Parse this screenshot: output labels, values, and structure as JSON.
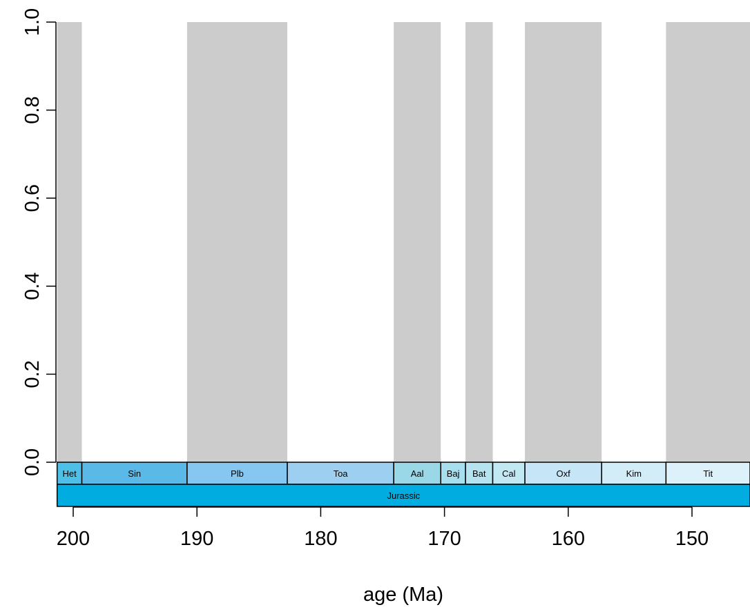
{
  "chart_data": {
    "type": "area",
    "title": "",
    "xlabel": "age (Ma)",
    "ylabel": "",
    "xlim": [
      201.3,
      145.0
    ],
    "x_reversed": true,
    "ylim": [
      0,
      1
    ],
    "x_ticks": [
      200,
      190,
      180,
      170,
      160,
      150
    ],
    "y_ticks": [
      0.0,
      0.2,
      0.4,
      0.6,
      0.8,
      1.0
    ],
    "y_tick_labels": [
      "0.0",
      "0.2",
      "0.4",
      "0.6",
      "0.8",
      "1.0"
    ],
    "grid": false,
    "legend": "none",
    "shading_color": "#cccccc",
    "shaded_intervals": [
      {
        "stage": "Het",
        "start": 201.3,
        "end": 199.3
      },
      {
        "stage": "Plb",
        "start": 190.8,
        "end": 182.7
      },
      {
        "stage": "Aal",
        "start": 174.1,
        "end": 170.3
      },
      {
        "stage": "Bat",
        "start": 168.3,
        "end": 166.1
      },
      {
        "stage": "Oxf",
        "start": 163.5,
        "end": 157.3
      },
      {
        "stage": "Tit",
        "start": 152.1,
        "end": 145.0
      }
    ],
    "stages": [
      {
        "label": "Het",
        "start": 201.3,
        "end": 199.3,
        "color": "#4ec0e8"
      },
      {
        "label": "Sin",
        "start": 199.3,
        "end": 190.8,
        "color": "#5bb9e8"
      },
      {
        "label": "Plb",
        "start": 190.8,
        "end": 182.7,
        "color": "#85c7f0"
      },
      {
        "label": "Toa",
        "start": 182.7,
        "end": 174.1,
        "color": "#9dd0f0"
      },
      {
        "label": "Aal",
        "start": 174.1,
        "end": 170.3,
        "color": "#9ad8e8"
      },
      {
        "label": "Baj",
        "start": 170.3,
        "end": 168.3,
        "color": "#a8dfee"
      },
      {
        "label": "Bat",
        "start": 168.3,
        "end": 166.1,
        "color": "#b5e3f0"
      },
      {
        "label": "Cal",
        "start": 166.1,
        "end": 163.5,
        "color": "#c2e8f4"
      },
      {
        "label": "Oxf",
        "start": 163.5,
        "end": 157.3,
        "color": "#c6e6f8"
      },
      {
        "label": "Kim",
        "start": 157.3,
        "end": 152.1,
        "color": "#d2ecf8"
      },
      {
        "label": "Tit",
        "start": 152.1,
        "end": 145.0,
        "color": "#dcf1fa"
      }
    ],
    "periods": [
      {
        "label": "Jurassic",
        "start": 201.3,
        "end": 145.0,
        "color": "#00ace0"
      }
    ]
  }
}
